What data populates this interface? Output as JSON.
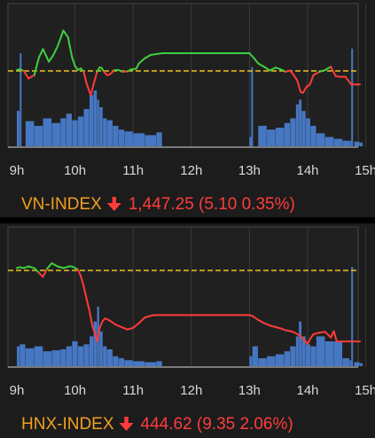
{
  "colors": {
    "up": "#3ecf3e",
    "down": "#ff3b3b",
    "reference": "#f0c020",
    "volume": "#4a7fd0",
    "index_name": "#f0a020"
  },
  "chart_data": [
    {
      "type": "line",
      "name": "VN-INDEX",
      "title_value": "1,447.25 (5.10 0.35%)",
      "direction_icon": "down-arrow-icon",
      "x_ticks": [
        "9h",
        "10h",
        "11h",
        "12h",
        "13h",
        "14h",
        "15h"
      ],
      "reference_line": true,
      "price_series": {
        "time_h": [
          9.0,
          9.05,
          9.12,
          9.2,
          9.3,
          9.38,
          9.45,
          9.55,
          9.62,
          9.7,
          9.8,
          9.88,
          9.95,
          10.0,
          10.05,
          10.1,
          10.15,
          10.2,
          10.27,
          10.33,
          10.38,
          10.42,
          10.45,
          10.5,
          10.55,
          10.6,
          10.68,
          10.75,
          10.82,
          10.9,
          10.97,
          11.05,
          11.1,
          11.2,
          11.3,
          11.5,
          12.0,
          13.0,
          13.08,
          13.15,
          13.25,
          13.35,
          13.45,
          13.55,
          13.62,
          13.7,
          13.76,
          13.82,
          13.88,
          13.92,
          13.98,
          14.04,
          14.1,
          14.2,
          14.3,
          14.4,
          14.48,
          14.55,
          14.65,
          14.75,
          14.9
        ],
        "relative": [
          0.1,
          0.2,
          0.0,
          -0.9,
          -0.5,
          1.6,
          2.6,
          1.1,
          1.8,
          2.9,
          4.8,
          4.0,
          1.6,
          0.6,
          0.1,
          0.3,
          -0.1,
          -1.5,
          -2.9,
          -1.3,
          -0.1,
          0.4,
          0.4,
          -0.1,
          -0.5,
          -0.4,
          0.1,
          0.1,
          -0.1,
          -0.05,
          0.2,
          0.25,
          0.9,
          1.5,
          1.9,
          2.1,
          2.1,
          2.1,
          1.5,
          0.9,
          0.5,
          0.05,
          0.4,
          0.15,
          -0.1,
          0.05,
          -0.5,
          -1.1,
          -2.5,
          -2.6,
          -1.9,
          -1.6,
          -0.5,
          -0.1,
          0.1,
          0.5,
          -0.6,
          -0.7,
          -0.7,
          -1.6,
          -1.6
        ]
      },
      "volume_series": {
        "time_h": [
          9.0,
          9.05,
          9.15,
          9.3,
          9.45,
          9.6,
          9.75,
          9.85,
          9.95,
          10.05,
          10.15,
          10.25,
          10.32,
          10.38,
          10.42,
          10.48,
          10.55,
          10.65,
          10.75,
          10.85,
          11.0,
          11.2,
          11.4,
          11.5,
          13.0,
          13.03,
          13.15,
          13.3,
          13.45,
          13.6,
          13.7,
          13.8,
          13.85,
          13.9,
          13.97,
          14.05,
          14.15,
          14.3,
          14.45,
          14.6,
          14.72,
          14.75,
          14.8,
          14.9
        ],
        "relative": [
          0.38,
          1.0,
          0.27,
          0.22,
          0.3,
          0.25,
          0.3,
          0.35,
          0.28,
          0.32,
          0.4,
          0.55,
          0.6,
          0.5,
          0.42,
          0.3,
          0.28,
          0.22,
          0.18,
          0.16,
          0.14,
          0.12,
          0.15,
          0.1,
          0.1,
          0.85,
          0.22,
          0.18,
          0.2,
          0.25,
          0.3,
          0.45,
          0.5,
          0.38,
          0.3,
          0.22,
          0.14,
          0.1,
          0.08,
          0.06,
          0.06,
          1.05,
          0.05,
          0.04
        ]
      }
    },
    {
      "type": "line",
      "name": "HNX-INDEX",
      "title_value": "444.62 (9.35 2.06%)",
      "direction_icon": "down-arrow-icon",
      "x_ticks": [
        "9h",
        "10h",
        "11h",
        "12h",
        "13h",
        "14h",
        "15h"
      ],
      "reference_line": true,
      "price_series": {
        "time_h": [
          9.0,
          9.05,
          9.12,
          9.2,
          9.3,
          9.38,
          9.45,
          9.52,
          9.6,
          9.7,
          9.8,
          9.9,
          9.95,
          10.0,
          10.05,
          10.1,
          10.15,
          10.2,
          10.25,
          10.3,
          10.35,
          10.38,
          10.42,
          10.47,
          10.52,
          10.6,
          10.7,
          10.8,
          10.9,
          11.0,
          11.1,
          11.2,
          11.35,
          11.5,
          12.0,
          13.0,
          13.05,
          13.15,
          13.25,
          13.35,
          13.45,
          13.55,
          13.62,
          13.7,
          13.78,
          13.85,
          13.9,
          13.95,
          14.0,
          14.05,
          14.1,
          14.2,
          14.3,
          14.4,
          14.45,
          14.5,
          14.6,
          14.75,
          14.9
        ],
        "relative": [
          0.3,
          0.4,
          0.3,
          0.5,
          0.3,
          -0.3,
          -0.8,
          0.2,
          0.9,
          0.5,
          0.3,
          0.5,
          0.5,
          0.3,
          0.1,
          -0.7,
          -2.0,
          -3.6,
          -5.1,
          -7.0,
          -8.0,
          -8.9,
          -7.3,
          -6.4,
          -6.0,
          -6.3,
          -6.8,
          -7.1,
          -7.4,
          -7.2,
          -6.6,
          -5.9,
          -5.6,
          -5.6,
          -5.6,
          -5.6,
          -5.7,
          -6.2,
          -6.6,
          -6.9,
          -7.1,
          -7.3,
          -7.5,
          -7.6,
          -7.8,
          -8.1,
          -8.4,
          -8.8,
          -9.2,
          -8.5,
          -8.0,
          -7.8,
          -7.7,
          -8.4,
          -7.6,
          -8.9,
          -8.9,
          -8.9,
          -8.9
        ]
      },
      "volume_series": {
        "time_h": [
          9.0,
          9.05,
          9.15,
          9.3,
          9.45,
          9.6,
          9.75,
          9.85,
          9.95,
          10.05,
          10.15,
          10.25,
          10.32,
          10.38,
          10.42,
          10.48,
          10.55,
          10.65,
          10.75,
          10.85,
          11.0,
          11.2,
          11.4,
          11.5,
          13.0,
          13.05,
          13.15,
          13.3,
          13.45,
          13.6,
          13.7,
          13.8,
          13.85,
          13.9,
          13.97,
          14.05,
          14.15,
          14.3,
          14.45,
          14.6,
          14.72,
          14.75,
          14.8,
          14.9
        ],
        "relative": [
          0.2,
          0.22,
          0.18,
          0.2,
          0.15,
          0.16,
          0.17,
          0.2,
          0.25,
          0.2,
          0.22,
          0.3,
          0.45,
          0.6,
          0.35,
          0.2,
          0.17,
          0.1,
          0.08,
          0.06,
          0.05,
          0.04,
          0.05,
          0.04,
          0.1,
          0.2,
          0.08,
          0.1,
          0.12,
          0.15,
          0.2,
          0.3,
          0.45,
          0.3,
          0.22,
          0.2,
          0.3,
          0.25,
          0.25,
          0.08,
          0.06,
          1.0,
          0.04,
          0.03
        ]
      }
    }
  ]
}
